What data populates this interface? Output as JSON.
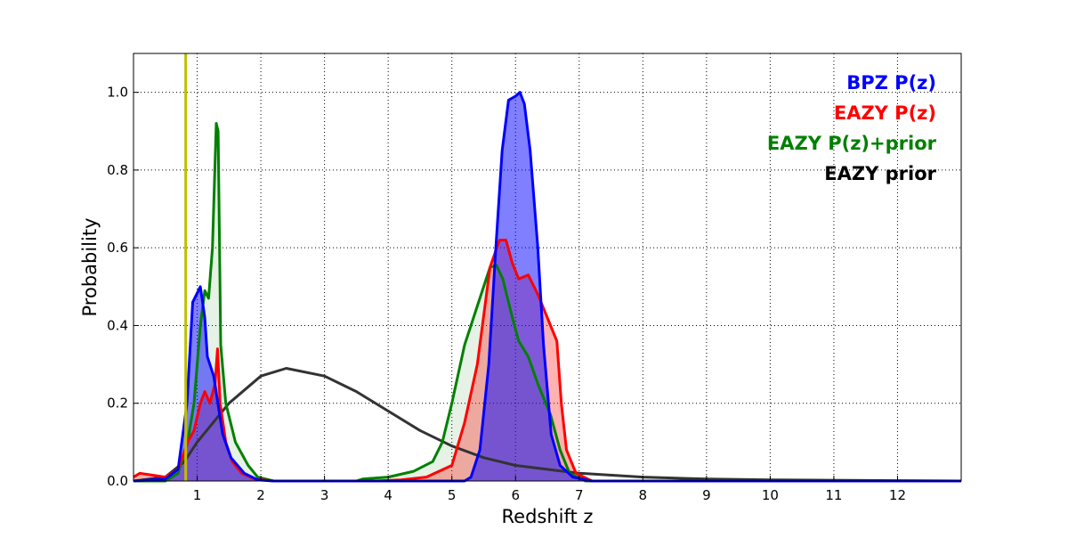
{
  "chart_data": {
    "type": "area",
    "title": "",
    "xlabel": "Redshift z",
    "ylabel": "Probability",
    "xlim": [
      0,
      13
    ],
    "ylim": [
      0,
      1.1
    ],
    "xticks": [
      1,
      2,
      3,
      4,
      5,
      6,
      7,
      8,
      9,
      10,
      11,
      12
    ],
    "yticks": [
      0.0,
      0.2,
      0.4,
      0.6,
      0.8,
      1.0
    ],
    "grid": true,
    "legend_position": "top-right",
    "vertical_line": {
      "x": 0.82,
      "color": "#bfbf00"
    },
    "series": [
      {
        "name": "EAZY prior",
        "color": "#333333",
        "fill": "none",
        "points": [
          [
            0,
            0
          ],
          [
            0.5,
            0.01
          ],
          [
            0.8,
            0.05
          ],
          [
            1.0,
            0.1
          ],
          [
            1.5,
            0.2
          ],
          [
            2.0,
            0.27
          ],
          [
            2.4,
            0.29
          ],
          [
            3.0,
            0.27
          ],
          [
            3.5,
            0.23
          ],
          [
            4.0,
            0.18
          ],
          [
            4.5,
            0.13
          ],
          [
            5.0,
            0.09
          ],
          [
            5.5,
            0.06
          ],
          [
            6.0,
            0.04
          ],
          [
            7.0,
            0.02
          ],
          [
            8.0,
            0.01
          ],
          [
            9.0,
            0.005
          ],
          [
            10.0,
            0.003
          ],
          [
            12.0,
            0.001
          ],
          [
            13.0,
            0
          ]
        ]
      },
      {
        "name": "EAZY P(z)+prior",
        "color": "#008000",
        "fill": "rgba(0,128,0,0.1)",
        "points": [
          [
            0,
            0
          ],
          [
            0.5,
            0
          ],
          [
            0.7,
            0.02
          ],
          [
            0.85,
            0.1
          ],
          [
            0.95,
            0.2
          ],
          [
            1.05,
            0.4
          ],
          [
            1.12,
            0.49
          ],
          [
            1.18,
            0.47
          ],
          [
            1.24,
            0.6
          ],
          [
            1.3,
            0.92
          ],
          [
            1.33,
            0.9
          ],
          [
            1.37,
            0.35
          ],
          [
            1.45,
            0.2
          ],
          [
            1.6,
            0.1
          ],
          [
            1.8,
            0.04
          ],
          [
            1.95,
            0.01
          ],
          [
            2.2,
            0
          ],
          [
            3.5,
            0
          ],
          [
            3.6,
            0.005
          ],
          [
            4.0,
            0.01
          ],
          [
            4.4,
            0.025
          ],
          [
            4.7,
            0.05
          ],
          [
            4.85,
            0.1
          ],
          [
            5.0,
            0.2
          ],
          [
            5.2,
            0.35
          ],
          [
            5.4,
            0.45
          ],
          [
            5.6,
            0.55
          ],
          [
            5.7,
            0.555
          ],
          [
            5.8,
            0.52
          ],
          [
            5.95,
            0.42
          ],
          [
            6.05,
            0.36
          ],
          [
            6.2,
            0.32
          ],
          [
            6.35,
            0.25
          ],
          [
            6.55,
            0.17
          ],
          [
            6.7,
            0.08
          ],
          [
            6.85,
            0.02
          ],
          [
            7.1,
            0
          ],
          [
            13,
            0
          ]
        ]
      },
      {
        "name": "EAZY P(z)",
        "color": "#ff0000",
        "fill": "rgba(255,0,0,0.3)",
        "points": [
          [
            0,
            0.01
          ],
          [
            0.1,
            0.02
          ],
          [
            0.3,
            0.015
          ],
          [
            0.5,
            0.01
          ],
          [
            0.7,
            0.03
          ],
          [
            0.85,
            0.1
          ],
          [
            0.95,
            0.13
          ],
          [
            1.05,
            0.2
          ],
          [
            1.12,
            0.23
          ],
          [
            1.2,
            0.2
          ],
          [
            1.28,
            0.25
          ],
          [
            1.32,
            0.34
          ],
          [
            1.36,
            0.2
          ],
          [
            1.45,
            0.1
          ],
          [
            1.55,
            0.05
          ],
          [
            1.7,
            0.02
          ],
          [
            1.9,
            0.005
          ],
          [
            2.2,
            0
          ],
          [
            3.8,
            0
          ],
          [
            4.2,
            0.003
          ],
          [
            4.6,
            0.01
          ],
          [
            5.0,
            0.04
          ],
          [
            5.2,
            0.15
          ],
          [
            5.4,
            0.3
          ],
          [
            5.6,
            0.55
          ],
          [
            5.75,
            0.62
          ],
          [
            5.85,
            0.62
          ],
          [
            5.95,
            0.56
          ],
          [
            6.05,
            0.52
          ],
          [
            6.2,
            0.53
          ],
          [
            6.35,
            0.48
          ],
          [
            6.5,
            0.42
          ],
          [
            6.65,
            0.36
          ],
          [
            6.72,
            0.2
          ],
          [
            6.8,
            0.08
          ],
          [
            6.95,
            0.02
          ],
          [
            7.2,
            0
          ],
          [
            13,
            0
          ]
        ]
      },
      {
        "name": "BPZ P(z)",
        "color": "#0000ff",
        "fill": "rgba(0,0,255,0.5)",
        "points": [
          [
            0,
            0
          ],
          [
            0.5,
            0.005
          ],
          [
            0.7,
            0.03
          ],
          [
            0.84,
            0.2
          ],
          [
            0.93,
            0.46
          ],
          [
            1.05,
            0.5
          ],
          [
            1.12,
            0.42
          ],
          [
            1.16,
            0.32
          ],
          [
            1.26,
            0.27
          ],
          [
            1.4,
            0.12
          ],
          [
            1.53,
            0.06
          ],
          [
            1.74,
            0.02
          ],
          [
            1.95,
            0.003
          ],
          [
            2.2,
            0
          ],
          [
            5.2,
            0
          ],
          [
            5.3,
            0.01
          ],
          [
            5.44,
            0.08
          ],
          [
            5.58,
            0.3
          ],
          [
            5.69,
            0.6
          ],
          [
            5.79,
            0.85
          ],
          [
            5.89,
            0.98
          ],
          [
            6.0,
            0.99
          ],
          [
            6.07,
            1.0
          ],
          [
            6.14,
            0.97
          ],
          [
            6.23,
            0.85
          ],
          [
            6.35,
            0.6
          ],
          [
            6.44,
            0.35
          ],
          [
            6.56,
            0.12
          ],
          [
            6.7,
            0.04
          ],
          [
            6.9,
            0.01
          ],
          [
            7.2,
            0
          ],
          [
            13,
            0
          ]
        ]
      }
    ],
    "legend": [
      {
        "label": "BPZ P(z)",
        "color": "#0000ff"
      },
      {
        "label": "EAZY P(z)",
        "color": "#ff0000"
      },
      {
        "label": "EAZY P(z)+prior",
        "color": "#008000"
      },
      {
        "label": "EAZY prior",
        "color": "#000000"
      }
    ]
  }
}
